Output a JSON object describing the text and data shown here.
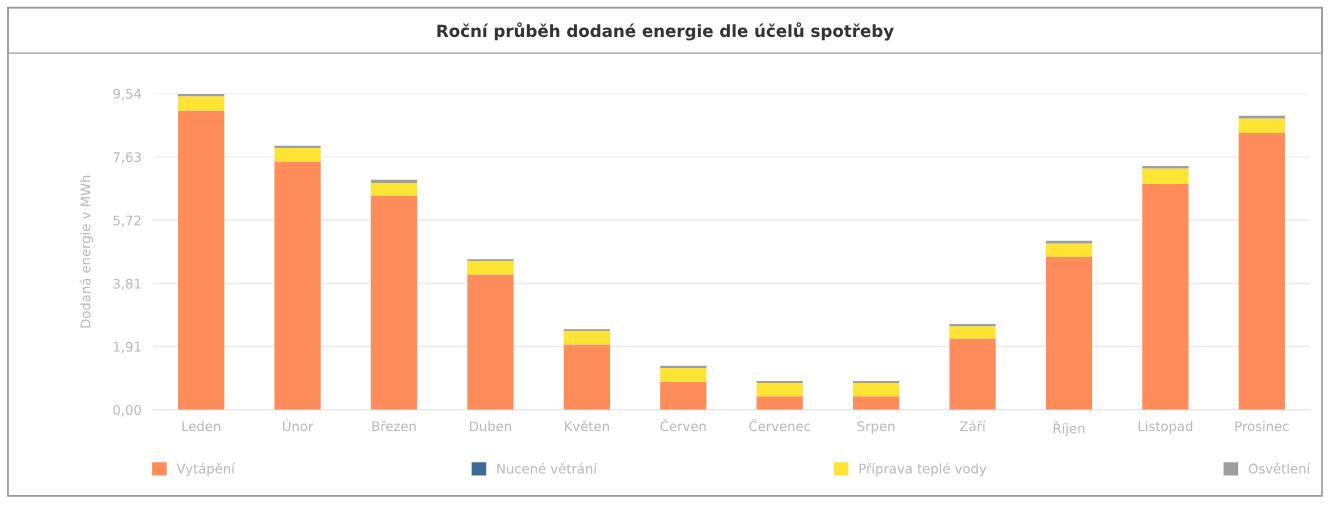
{
  "chart_data": {
    "type": "bar",
    "stacked": true,
    "title": "Roční průběh dodané energie dle účelů spotřeby",
    "ylabel": "Dodaná energie v MWh",
    "categories": [
      "Leden",
      "Únor",
      "Březen",
      "Duben",
      "Květen",
      "Červen",
      "Červenec",
      "Srpen",
      "Září",
      "Říjen",
      "Listopad",
      "Prosinec"
    ],
    "series": [
      {
        "name": "Vytápění",
        "color": "#ff8c5a",
        "values": [
          9.02,
          7.49,
          6.46,
          4.08,
          1.97,
          0.85,
          0.41,
          0.41,
          2.15,
          4.61,
          6.82,
          8.35
        ]
      },
      {
        "name": "Nucené větrání",
        "color": "#3d6a99",
        "values": [
          0,
          0,
          0,
          0,
          0,
          0,
          0,
          0,
          0,
          0,
          0,
          0
        ]
      },
      {
        "name": "Příprava teplé vody",
        "color": "#ffe433",
        "values": [
          0.44,
          0.41,
          0.38,
          0.41,
          0.41,
          0.41,
          0.4,
          0.4,
          0.37,
          0.41,
          0.46,
          0.44
        ]
      },
      {
        "name": "Osvětlení",
        "color": "#9e9e9e",
        "values": [
          0.07,
          0.07,
          0.1,
          0.05,
          0.05,
          0.07,
          0.06,
          0.06,
          0.07,
          0.08,
          0.08,
          0.08
        ]
      }
    ],
    "ylim": [
      0,
      9.54
    ],
    "yticks": [
      {
        "value": 0,
        "label": "0,00"
      },
      {
        "value": 1.91,
        "label": "1,91"
      },
      {
        "value": 3.81,
        "label": "3,81"
      },
      {
        "value": 5.72,
        "label": "5,72"
      },
      {
        "value": 7.63,
        "label": "7,63"
      },
      {
        "value": 9.54,
        "label": "9,54"
      }
    ],
    "grid": "y",
    "legend": "bottom"
  }
}
